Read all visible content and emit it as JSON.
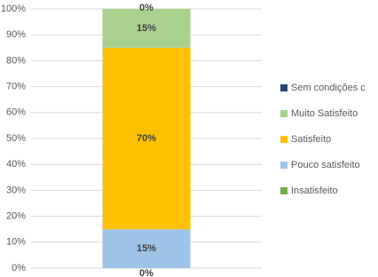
{
  "chart_data": {
    "type": "stacked_bar",
    "categories": [
      null
    ],
    "series": [
      {
        "name": "Insatisfeito",
        "color": "#70ad47",
        "values": [
          0
        ],
        "value_labels": [
          "0%"
        ]
      },
      {
        "name": "Pouco satisfeito",
        "color": "#9dc3e6",
        "values": [
          15
        ],
        "value_labels": [
          "15%"
        ]
      },
      {
        "name": "Satisfeito",
        "color": "#ffc000",
        "values": [
          70
        ],
        "value_labels": [
          "70%"
        ]
      },
      {
        "name": "Muito Satisfeito",
        "color": "#a9d18e",
        "values": [
          15
        ],
        "value_labels": [
          "15%"
        ]
      },
      {
        "name": "Sem condições c",
        "color": "#264478",
        "values": [
          0
        ],
        "value_labels": [
          "0%"
        ]
      }
    ],
    "ylim": [
      0,
      100
    ],
    "yticks": [
      {
        "value": 0,
        "label": "0%"
      },
      {
        "value": 10,
        "label": "10%"
      },
      {
        "value": 20,
        "label": "20%"
      },
      {
        "value": 30,
        "label": "30%"
      },
      {
        "value": 40,
        "label": "40%"
      },
      {
        "value": 50,
        "label": "50%"
      },
      {
        "value": 60,
        "label": "60%"
      },
      {
        "value": 70,
        "label": "70%"
      },
      {
        "value": 80,
        "label": "80%"
      },
      {
        "value": 90,
        "label": "90%"
      },
      {
        "value": 100,
        "label": "100%"
      }
    ],
    "grid": true,
    "legend": "right"
  }
}
